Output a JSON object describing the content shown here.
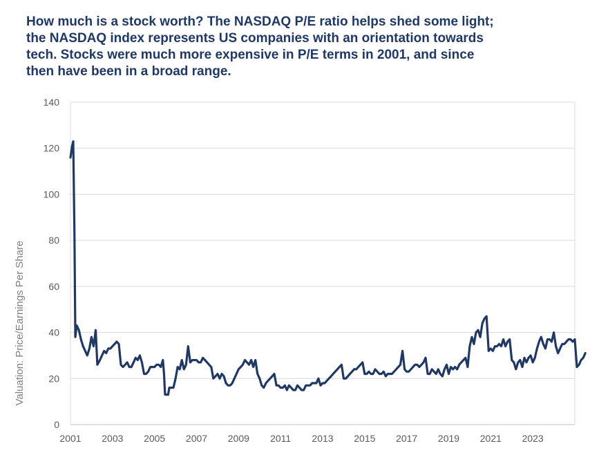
{
  "title": "How much is a stock worth? The NASDAQ P/E ratio helps shed some light; the NASDAQ index represents US companies with an orientation towards tech. Stocks were much more expensive in P/E terms in 2001, and since then have been in a broad range.",
  "colors": {
    "line": "#1f3864",
    "grid": "#d9d9d9",
    "title": "#1f3864",
    "ticks": "#595959"
  },
  "chart_data": {
    "type": "line",
    "title": "How much is a stock worth? The NASDAQ P/E ratio helps shed some light; the NASDAQ index represents US companies with an orientation towards tech. Stocks were much more expensive in P/E terms in 2001, and since then have been in a broad range.",
    "xlabel": "",
    "ylabel": "Valuation: Price/Earnings Per Share",
    "xlim": [
      2001,
      2025
    ],
    "ylim": [
      0,
      140
    ],
    "x_ticks": [
      "2001",
      "2003",
      "2005",
      "2007",
      "2009",
      "2011",
      "2013",
      "2015",
      "2017",
      "2019",
      "2021",
      "2023"
    ],
    "y_ticks": [
      "0",
      "20",
      "40",
      "60",
      "80",
      "100",
      "120",
      "140"
    ],
    "grid": true,
    "legend": "none",
    "series": [
      {
        "name": "",
        "points": [
          [
            2001.0,
            116
          ],
          [
            2001.08,
            121
          ],
          [
            2001.13,
            123
          ],
          [
            2001.19,
            82
          ],
          [
            2001.23,
            38
          ],
          [
            2001.3,
            43
          ],
          [
            2001.4,
            41
          ],
          [
            2001.5,
            37
          ],
          [
            2001.6,
            34
          ],
          [
            2001.7,
            32
          ],
          [
            2001.8,
            30
          ],
          [
            2001.9,
            33
          ],
          [
            2002.0,
            38
          ],
          [
            2002.1,
            34
          ],
          [
            2002.2,
            41
          ],
          [
            2002.28,
            26
          ],
          [
            2002.4,
            28
          ],
          [
            2002.5,
            30
          ],
          [
            2002.6,
            32
          ],
          [
            2002.7,
            31
          ],
          [
            2002.8,
            33
          ],
          [
            2002.9,
            33
          ],
          [
            2003.0,
            34
          ],
          [
            2003.1,
            35
          ],
          [
            2003.2,
            36
          ],
          [
            2003.3,
            35
          ],
          [
            2003.4,
            26
          ],
          [
            2003.5,
            25
          ],
          [
            2003.6,
            26
          ],
          [
            2003.7,
            27
          ],
          [
            2003.8,
            25
          ],
          [
            2003.9,
            25
          ],
          [
            2004.0,
            27
          ],
          [
            2004.1,
            29
          ],
          [
            2004.2,
            28
          ],
          [
            2004.3,
            30
          ],
          [
            2004.4,
            27
          ],
          [
            2004.5,
            22
          ],
          [
            2004.6,
            22
          ],
          [
            2004.7,
            23
          ],
          [
            2004.8,
            25
          ],
          [
            2004.9,
            25
          ],
          [
            2005.0,
            25
          ],
          [
            2005.1,
            26
          ],
          [
            2005.2,
            26
          ],
          [
            2005.3,
            25
          ],
          [
            2005.4,
            28
          ],
          [
            2005.45,
            22
          ],
          [
            2005.5,
            13
          ],
          [
            2005.65,
            13
          ],
          [
            2005.7,
            16
          ],
          [
            2005.8,
            16
          ],
          [
            2005.9,
            16
          ],
          [
            2006.0,
            20
          ],
          [
            2006.1,
            25
          ],
          [
            2006.2,
            24
          ],
          [
            2006.3,
            28
          ],
          [
            2006.4,
            24
          ],
          [
            2006.5,
            26
          ],
          [
            2006.6,
            34
          ],
          [
            2006.7,
            27
          ],
          [
            2006.8,
            28
          ],
          [
            2006.9,
            28
          ],
          [
            2007.0,
            28
          ],
          [
            2007.1,
            27
          ],
          [
            2007.2,
            27
          ],
          [
            2007.3,
            29
          ],
          [
            2007.4,
            28
          ],
          [
            2007.5,
            27
          ],
          [
            2007.6,
            26
          ],
          [
            2007.7,
            25
          ],
          [
            2007.8,
            20
          ],
          [
            2007.9,
            21
          ],
          [
            2008.0,
            22
          ],
          [
            2008.1,
            20
          ],
          [
            2008.2,
            22
          ],
          [
            2008.3,
            21
          ],
          [
            2008.4,
            18
          ],
          [
            2008.5,
            17
          ],
          [
            2008.6,
            17
          ],
          [
            2008.7,
            18
          ],
          [
            2008.8,
            20
          ],
          [
            2008.9,
            22
          ],
          [
            2009.0,
            24
          ],
          [
            2009.1,
            25
          ],
          [
            2009.2,
            26
          ],
          [
            2009.3,
            28
          ],
          [
            2009.4,
            27
          ],
          [
            2009.5,
            26
          ],
          [
            2009.6,
            28
          ],
          [
            2009.7,
            25
          ],
          [
            2009.8,
            28
          ],
          [
            2009.9,
            22
          ],
          [
            2010.0,
            20
          ],
          [
            2010.1,
            17
          ],
          [
            2010.2,
            16
          ],
          [
            2010.3,
            18
          ],
          [
            2010.4,
            19
          ],
          [
            2010.5,
            20
          ],
          [
            2010.6,
            21
          ],
          [
            2010.7,
            22
          ],
          [
            2010.8,
            17
          ],
          [
            2010.9,
            17
          ],
          [
            2011.0,
            16
          ],
          [
            2011.1,
            16
          ],
          [
            2011.2,
            17
          ],
          [
            2011.3,
            15
          ],
          [
            2011.4,
            17
          ],
          [
            2011.5,
            16
          ],
          [
            2011.6,
            15
          ],
          [
            2011.7,
            15
          ],
          [
            2011.8,
            17
          ],
          [
            2011.9,
            16
          ],
          [
            2012.0,
            15
          ],
          [
            2012.1,
            15
          ],
          [
            2012.2,
            17
          ],
          [
            2012.3,
            17
          ],
          [
            2012.4,
            17
          ],
          [
            2012.5,
            18
          ],
          [
            2012.6,
            18
          ],
          [
            2012.7,
            18
          ],
          [
            2012.8,
            20
          ],
          [
            2012.9,
            17
          ],
          [
            2013.0,
            18
          ],
          [
            2013.1,
            18
          ],
          [
            2013.2,
            19
          ],
          [
            2013.3,
            20
          ],
          [
            2013.4,
            21
          ],
          [
            2013.5,
            22
          ],
          [
            2013.6,
            23
          ],
          [
            2013.7,
            24
          ],
          [
            2013.8,
            25
          ],
          [
            2013.9,
            26
          ],
          [
            2014.0,
            20
          ],
          [
            2014.1,
            20
          ],
          [
            2014.2,
            21
          ],
          [
            2014.3,
            22
          ],
          [
            2014.4,
            23
          ],
          [
            2014.5,
            24
          ],
          [
            2014.6,
            24
          ],
          [
            2014.7,
            25
          ],
          [
            2014.8,
            26
          ],
          [
            2014.9,
            27
          ],
          [
            2015.0,
            22
          ],
          [
            2015.1,
            22
          ],
          [
            2015.2,
            23
          ],
          [
            2015.3,
            22
          ],
          [
            2015.4,
            22
          ],
          [
            2015.5,
            24
          ],
          [
            2015.6,
            23
          ],
          [
            2015.7,
            22
          ],
          [
            2015.8,
            22
          ],
          [
            2015.9,
            23
          ],
          [
            2016.0,
            21
          ],
          [
            2016.1,
            22
          ],
          [
            2016.2,
            22
          ],
          [
            2016.3,
            22
          ],
          [
            2016.4,
            23
          ],
          [
            2016.5,
            24
          ],
          [
            2016.6,
            25
          ],
          [
            2016.7,
            26
          ],
          [
            2016.8,
            32
          ],
          [
            2016.9,
            24
          ],
          [
            2017.0,
            23
          ],
          [
            2017.1,
            23
          ],
          [
            2017.2,
            24
          ],
          [
            2017.3,
            25
          ],
          [
            2017.4,
            26
          ],
          [
            2017.5,
            26
          ],
          [
            2017.6,
            25
          ],
          [
            2017.7,
            26
          ],
          [
            2017.8,
            27
          ],
          [
            2017.9,
            29
          ],
          [
            2018.0,
            22
          ],
          [
            2018.1,
            22
          ],
          [
            2018.2,
            24
          ],
          [
            2018.3,
            23
          ],
          [
            2018.4,
            22
          ],
          [
            2018.5,
            24
          ],
          [
            2018.6,
            22
          ],
          [
            2018.7,
            21
          ],
          [
            2018.8,
            24
          ],
          [
            2018.9,
            26
          ],
          [
            2019.0,
            22
          ],
          [
            2019.1,
            25
          ],
          [
            2019.2,
            24
          ],
          [
            2019.3,
            25
          ],
          [
            2019.4,
            24
          ],
          [
            2019.5,
            26
          ],
          [
            2019.6,
            27
          ],
          [
            2019.7,
            28
          ],
          [
            2019.8,
            29
          ],
          [
            2019.9,
            25
          ],
          [
            2020.0,
            34
          ],
          [
            2020.1,
            38
          ],
          [
            2020.2,
            35
          ],
          [
            2020.3,
            40
          ],
          [
            2020.4,
            41
          ],
          [
            2020.5,
            38
          ],
          [
            2020.6,
            44
          ],
          [
            2020.7,
            46
          ],
          [
            2020.8,
            47
          ],
          [
            2020.9,
            32
          ],
          [
            2021.0,
            33
          ],
          [
            2021.1,
            32
          ],
          [
            2021.2,
            34
          ],
          [
            2021.3,
            34
          ],
          [
            2021.4,
            35
          ],
          [
            2021.5,
            34
          ],
          [
            2021.6,
            37
          ],
          [
            2021.7,
            34
          ],
          [
            2021.8,
            36
          ],
          [
            2021.9,
            37
          ],
          [
            2022.0,
            28
          ],
          [
            2022.1,
            27
          ],
          [
            2022.2,
            24
          ],
          [
            2022.3,
            27
          ],
          [
            2022.4,
            28
          ],
          [
            2022.5,
            25
          ],
          [
            2022.6,
            29
          ],
          [
            2022.7,
            27
          ],
          [
            2022.8,
            29
          ],
          [
            2022.9,
            30
          ],
          [
            2023.0,
            27
          ],
          [
            2023.1,
            29
          ],
          [
            2023.2,
            33
          ],
          [
            2023.3,
            36
          ],
          [
            2023.4,
            38
          ],
          [
            2023.5,
            35
          ],
          [
            2023.6,
            33
          ],
          [
            2023.7,
            37
          ],
          [
            2023.8,
            37
          ],
          [
            2023.9,
            36
          ],
          [
            2024.0,
            40
          ],
          [
            2024.1,
            34
          ],
          [
            2024.2,
            31
          ],
          [
            2024.3,
            33
          ],
          [
            2024.4,
            35
          ],
          [
            2024.5,
            35
          ],
          [
            2024.6,
            36
          ],
          [
            2024.7,
            37
          ],
          [
            2024.8,
            37
          ],
          [
            2024.9,
            36
          ],
          [
            2025.0,
            37
          ],
          [
            2025.1,
            25
          ],
          [
            2025.2,
            26
          ],
          [
            2025.3,
            28
          ],
          [
            2025.4,
            29
          ],
          [
            2025.5,
            31
          ]
        ]
      }
    ]
  }
}
